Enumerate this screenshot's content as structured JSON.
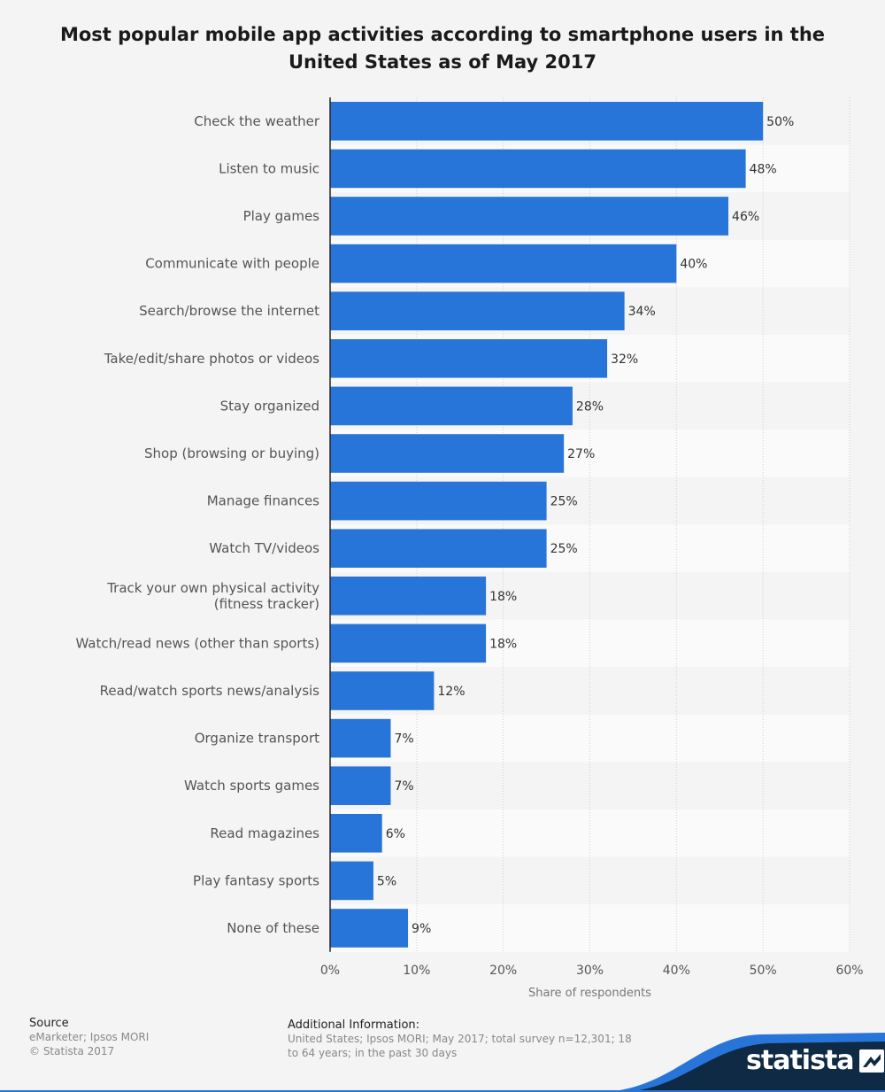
{
  "title": "Most popular mobile app activities according to smartphone users in the United States as of May 2017",
  "chart_data": {
    "type": "bar",
    "orientation": "horizontal",
    "categories": [
      [
        "Check the weather"
      ],
      [
        "Listen to music"
      ],
      [
        "Play games"
      ],
      [
        "Communicate with people"
      ],
      [
        "Search/browse the internet"
      ],
      [
        "Take/edit/share photos or videos"
      ],
      [
        "Stay organized"
      ],
      [
        "Shop (browsing or buying)"
      ],
      [
        "Manage finances"
      ],
      [
        "Watch TV/videos"
      ],
      [
        "Track your own physical activity",
        "(fitness tracker)"
      ],
      [
        "Watch/read news (other than sports)"
      ],
      [
        "Read/watch sports news/analysis"
      ],
      [
        "Organize transport"
      ],
      [
        "Watch sports games"
      ],
      [
        "Read magazines"
      ],
      [
        "Play fantasy sports"
      ],
      [
        "None of these"
      ]
    ],
    "values": [
      50,
      48,
      46,
      40,
      34,
      32,
      28,
      27,
      25,
      25,
      18,
      18,
      12,
      7,
      7,
      6,
      5,
      9
    ],
    "value_labels": [
      "50%",
      "48%",
      "46%",
      "40%",
      "34%",
      "32%",
      "28%",
      "27%",
      "25%",
      "25%",
      "18%",
      "18%",
      "12%",
      "7%",
      "7%",
      "6%",
      "5%",
      "9%"
    ],
    "xlim": [
      0,
      60
    ],
    "xticks": [
      0,
      10,
      20,
      30,
      40,
      50,
      60
    ],
    "xtick_labels": [
      "0%",
      "10%",
      "20%",
      "30%",
      "40%",
      "50%",
      "60%"
    ],
    "xlabel": "Share of respondents",
    "ylabel": "",
    "grid": true,
    "bar_color": "#2875d9"
  },
  "source": {
    "heading": "Source",
    "lines": [
      "eMarketer; Ipsos MORI",
      "© Statista 2017"
    ]
  },
  "additional_info": {
    "heading": "Additional Information:",
    "lines": [
      "United States; Ipsos MORI; May 2017; total survey n=12,301; 18",
      "to 64 years; in the past 30 days"
    ]
  },
  "brand": {
    "name": "statista",
    "logo_icon": "statista-logo-icon",
    "dark_color": "#0f2a44",
    "accent_color": "#2875d9"
  }
}
